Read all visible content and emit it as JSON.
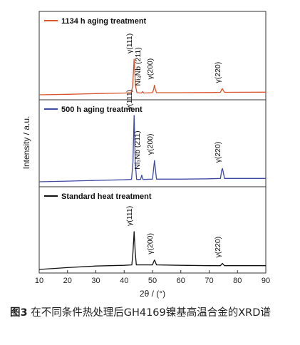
{
  "chart_data": {
    "type": "line",
    "xlabel": "2θ / (°)",
    "ylabel": "Intensity / a.u.",
    "xlim": [
      10,
      90
    ],
    "xticks": [
      "10",
      "20",
      "30",
      "40",
      "50",
      "60",
      "70",
      "80",
      "90"
    ],
    "grid": false,
    "panels": [
      {
        "name": "1134 h aging treatment",
        "color": "#d9532c",
        "points": [
          [
            10,
            0.0
          ],
          [
            20,
            0.015
          ],
          [
            30,
            0.035
          ],
          [
            40,
            0.05
          ],
          [
            42.5,
            0.06
          ],
          [
            43.0,
            0.25
          ],
          [
            43.5,
            1.0
          ],
          [
            44.0,
            0.25
          ],
          [
            44.5,
            0.06
          ],
          [
            46.1,
            0.05
          ],
          [
            46.5,
            0.09
          ],
          [
            46.9,
            0.05
          ],
          [
            50.0,
            0.06
          ],
          [
            50.4,
            0.15
          ],
          [
            50.7,
            0.27
          ],
          [
            51.0,
            0.15
          ],
          [
            51.4,
            0.06
          ],
          [
            60,
            0.06
          ],
          [
            70,
            0.065
          ],
          [
            74.0,
            0.07
          ],
          [
            74.4,
            0.15
          ],
          [
            74.7,
            0.17
          ],
          [
            75.0,
            0.12
          ],
          [
            75.4,
            0.07
          ],
          [
            90,
            0.075
          ]
        ],
        "peak_labels": [
          {
            "text": "γ(111)",
            "x": 43.5
          },
          {
            "text": "Ni₃Nb (211)",
            "x": 46.5
          },
          {
            "text": "γ(200)",
            "x": 50.7
          },
          {
            "text": "γ(220)",
            "x": 74.7
          }
        ]
      },
      {
        "name": "500 h aging treatment",
        "color": "#3f4ba3",
        "points": [
          [
            10,
            0.0
          ],
          [
            20,
            0.01
          ],
          [
            30,
            0.02
          ],
          [
            40,
            0.03
          ],
          [
            42.6,
            0.035
          ],
          [
            43.1,
            0.3
          ],
          [
            43.5,
            1.0
          ],
          [
            43.9,
            0.3
          ],
          [
            44.4,
            0.035
          ],
          [
            45.8,
            0.035
          ],
          [
            46.2,
            0.1
          ],
          [
            46.6,
            0.035
          ],
          [
            50.0,
            0.04
          ],
          [
            50.4,
            0.2
          ],
          [
            50.7,
            0.32
          ],
          [
            51.0,
            0.2
          ],
          [
            51.4,
            0.04
          ],
          [
            60,
            0.04
          ],
          [
            70,
            0.045
          ],
          [
            74.0,
            0.05
          ],
          [
            74.4,
            0.17
          ],
          [
            74.7,
            0.2
          ],
          [
            75.0,
            0.14
          ],
          [
            75.4,
            0.05
          ],
          [
            90,
            0.05
          ]
        ],
        "peak_labels": [
          {
            "text": "γ(111)",
            "x": 43.5
          },
          {
            "text": "Ni₃Nb (211)",
            "x": 46.2
          },
          {
            "text": "γ(200)",
            "x": 50.7
          },
          {
            "text": "γ(220)",
            "x": 74.7
          }
        ]
      },
      {
        "name": "Standard heat treatment",
        "color": "#111111",
        "points": [
          [
            10,
            0.0
          ],
          [
            20,
            0.05
          ],
          [
            30,
            0.09
          ],
          [
            40,
            0.11
          ],
          [
            42.7,
            0.12
          ],
          [
            43.1,
            0.45
          ],
          [
            43.5,
            1.0
          ],
          [
            43.9,
            0.45
          ],
          [
            44.3,
            0.12
          ],
          [
            50.0,
            0.12
          ],
          [
            50.4,
            0.2
          ],
          [
            50.7,
            0.25
          ],
          [
            51.0,
            0.2
          ],
          [
            51.4,
            0.12
          ],
          [
            60,
            0.11
          ],
          [
            70,
            0.1
          ],
          [
            74.0,
            0.1
          ],
          [
            74.4,
            0.14
          ],
          [
            74.7,
            0.16
          ],
          [
            75.0,
            0.13
          ],
          [
            75.4,
            0.1
          ],
          [
            90,
            0.1
          ]
        ],
        "peak_labels": [
          {
            "text": "γ(111)",
            "x": 43.5
          },
          {
            "text": "γ(200)",
            "x": 50.7
          },
          {
            "text": "γ(220)",
            "x": 74.7
          }
        ]
      }
    ]
  },
  "caption": {
    "figure_label": "图3",
    "text": "在不同条件热处理后GH4169镍基高温合金的XRD谱"
  }
}
